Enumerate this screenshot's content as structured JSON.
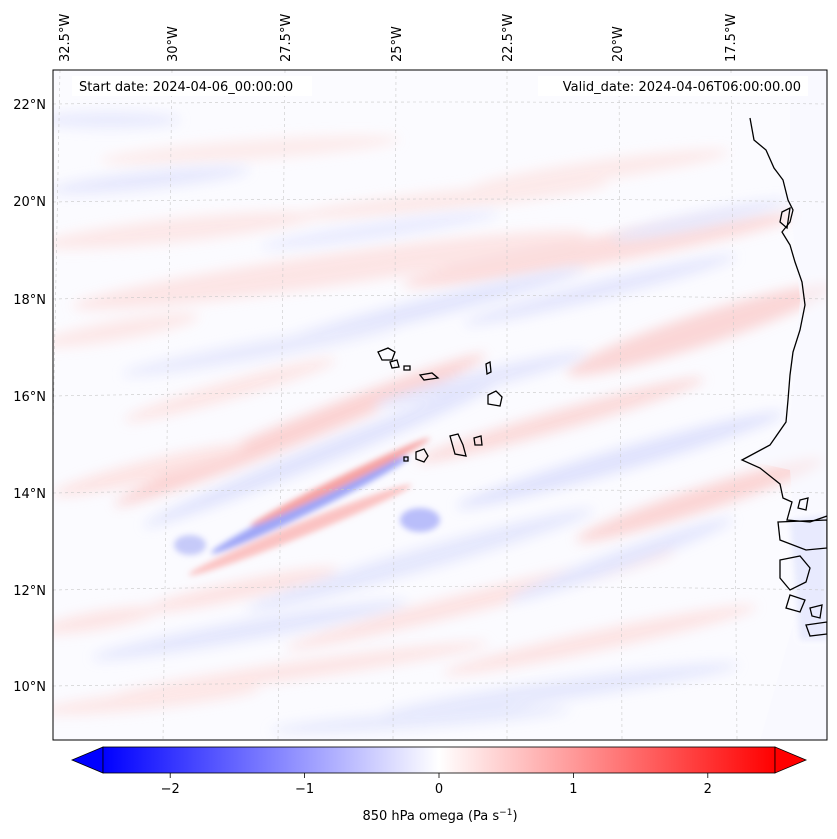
{
  "annotations": {
    "start_date": "Start date: 2024-04-06_00:00:00",
    "valid_date": "Valid_date: 2024-04-06T06:00:00.00"
  },
  "longitude_labels": [
    "32.5°W",
    "30°W",
    "27.5°W",
    "25°W",
    "22.5°W",
    "20°W",
    "17.5°W"
  ],
  "latitude_labels": [
    "22°N",
    "20°N",
    "18°N",
    "16°N",
    "14°N",
    "12°N",
    "10°N"
  ],
  "colorbar": {
    "label_prefix": "850 hPa omega (Pa s",
    "label_exp": "−1",
    "label_suffix": ")",
    "ticks": [
      -2,
      -1,
      0,
      1,
      2
    ],
    "tick_labels": [
      "−2",
      "−1",
      "0",
      "1",
      "2"
    ],
    "range": [
      -2.5,
      2.5
    ],
    "colors": {
      "negative": "#0000ff",
      "zero": "#ffffff",
      "positive": "#ff0000"
    },
    "extend": "both"
  },
  "map": {
    "projection": "conic",
    "variable": "850 hPa omega",
    "units": "Pa s-1",
    "lon_range": [
      -33.0,
      -15.0
    ],
    "lat_range": [
      9.0,
      22.8
    ],
    "gridlines": true,
    "coastline_color": "#000000"
  }
}
